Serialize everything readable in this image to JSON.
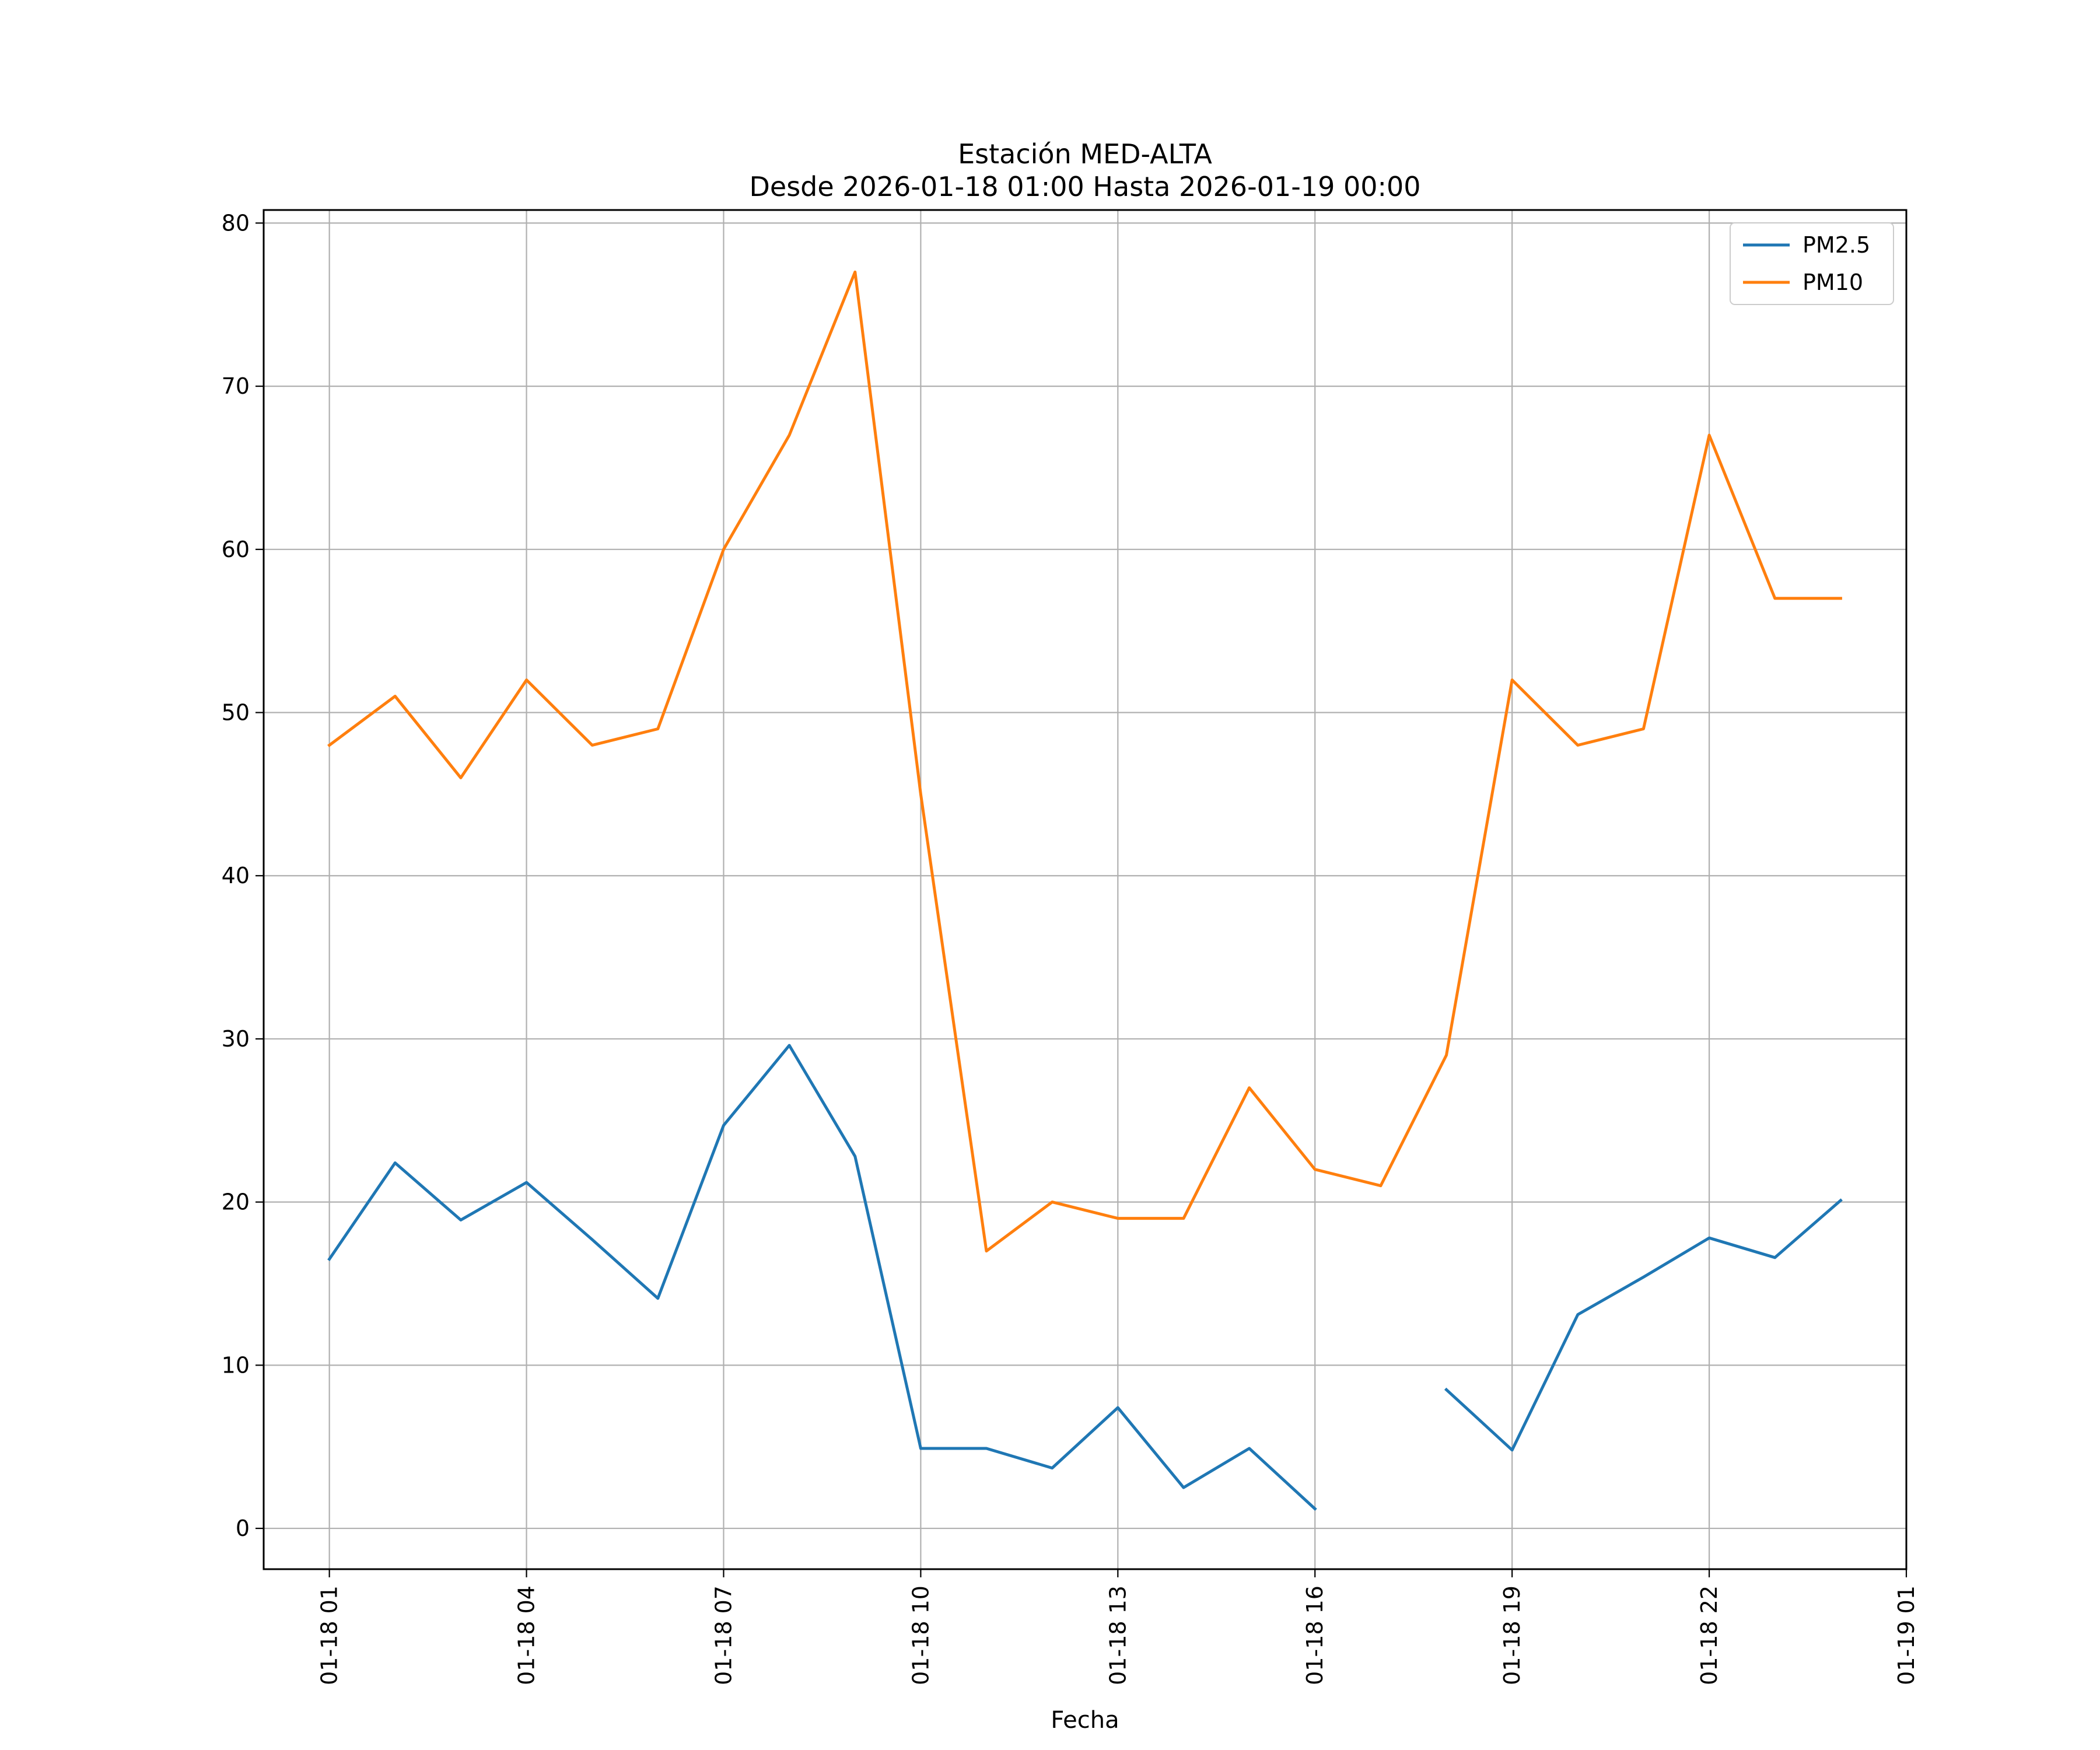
{
  "chart_data": {
    "type": "line",
    "title": "Estación MED-ALTA",
    "subtitle": "Desde 2026-01-18 01:00 Hasta 2026-01-19 00:00",
    "xlabel": "Fecha",
    "ylabel": "",
    "ylim": [
      -2.5,
      80.8
    ],
    "xlim": [
      "2026-01-18 00:00",
      "2026-01-19 01:00"
    ],
    "grid": true,
    "legend_position": "top-right",
    "x": [
      "2026-01-18 01:00",
      "2026-01-18 02:00",
      "2026-01-18 03:00",
      "2026-01-18 04:00",
      "2026-01-18 05:00",
      "2026-01-18 06:00",
      "2026-01-18 07:00",
      "2026-01-18 08:00",
      "2026-01-18 09:00",
      "2026-01-18 10:00",
      "2026-01-18 11:00",
      "2026-01-18 12:00",
      "2026-01-18 13:00",
      "2026-01-18 14:00",
      "2026-01-18 15:00",
      "2026-01-18 16:00",
      "2026-01-18 17:00",
      "2026-01-18 18:00",
      "2026-01-18 19:00",
      "2026-01-18 20:00",
      "2026-01-18 21:00",
      "2026-01-18 22:00",
      "2026-01-18 23:00",
      "2026-01-19 00:00"
    ],
    "x_ticks": [
      "2026-01-18 01:00",
      "2026-01-18 04:00",
      "2026-01-18 07:00",
      "2026-01-18 10:00",
      "2026-01-18 13:00",
      "2026-01-18 16:00",
      "2026-01-18 19:00",
      "2026-01-18 22:00",
      "2026-01-19 01:00"
    ],
    "x_tick_labels": [
      "01-18 01",
      "01-18 04",
      "01-18 07",
      "01-18 10",
      "01-18 13",
      "01-18 16",
      "01-18 19",
      "01-18 22",
      "01-19 01"
    ],
    "y_ticks": [
      0,
      10,
      20,
      30,
      40,
      50,
      60,
      70,
      80
    ],
    "y_tick_labels": [
      "0",
      "10",
      "20",
      "30",
      "40",
      "50",
      "60",
      "70",
      "80"
    ],
    "series": [
      {
        "name": "PM2.5",
        "color": "#1f77b4",
        "values": [
          16.5,
          22.4,
          18.9,
          21.2,
          17.7,
          14.1,
          24.7,
          29.6,
          22.8,
          4.9,
          4.9,
          3.7,
          7.4,
          2.5,
          4.9,
          1.2,
          null,
          8.5,
          4.8,
          13.1,
          15.4,
          17.8,
          16.6,
          20.1
        ]
      },
      {
        "name": "PM10",
        "color": "#ff7f0e",
        "values": [
          48,
          51,
          46,
          52,
          48,
          49,
          60,
          67,
          77,
          45,
          17,
          20,
          19,
          19,
          27,
          22,
          21,
          29,
          52,
          48,
          49,
          67,
          57,
          57
        ]
      }
    ]
  }
}
